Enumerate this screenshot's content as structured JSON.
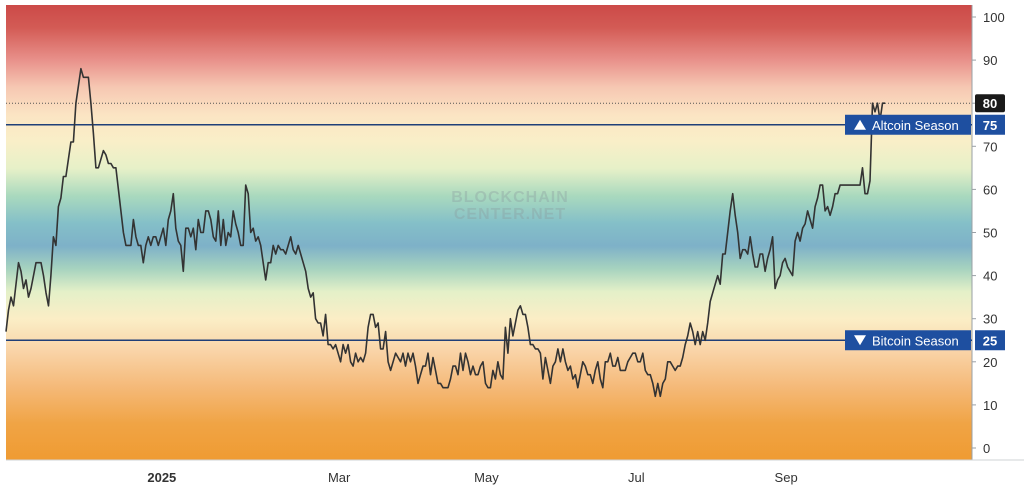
{
  "chart_data": {
    "type": "line",
    "title": "",
    "xlabel": "",
    "ylabel": "",
    "ylim": [
      -3,
      103
    ],
    "x_ticks": [
      "2025",
      "Mar",
      "May",
      "Jul",
      "Sep"
    ],
    "y_ticks": [
      "0",
      "10",
      "20",
      "30",
      "40",
      "50",
      "60",
      "70",
      "80",
      "90",
      "100"
    ],
    "watermark": [
      "BLOCKCHAIN",
      "CENTER.NET"
    ],
    "current_value": "80",
    "thresholds": [
      {
        "label": "Altcoin Season",
        "value": 75,
        "value_label": "75",
        "marker": "up-triangle"
      },
      {
        "label": "Bitcoin Season",
        "value": 25,
        "value_label": "25",
        "marker": "down-triangle"
      }
    ],
    "series": [
      {
        "color": "#333333",
        "values": [
          27,
          32,
          35,
          33,
          38,
          43,
          41,
          37,
          39,
          35,
          37,
          40,
          43,
          43,
          43,
          40,
          36,
          33,
          40,
          49,
          47,
          56,
          58,
          63,
          63,
          67,
          71,
          71,
          80,
          84,
          88,
          86,
          86,
          86,
          80,
          73,
          65,
          65,
          67,
          69,
          68,
          66,
          66,
          65,
          65,
          60,
          55,
          50,
          47,
          47,
          47,
          53,
          49,
          47,
          47,
          43,
          47,
          49,
          47,
          49,
          49,
          47,
          49,
          51,
          47,
          53,
          55,
          59,
          51,
          48,
          47,
          41,
          51,
          51,
          49,
          51,
          46,
          53,
          50,
          50,
          55,
          55,
          53,
          49,
          48,
          55,
          47,
          53,
          47,
          50,
          49,
          55,
          52,
          50,
          47,
          47,
          61,
          59,
          50,
          51,
          48,
          49,
          47,
          43,
          39,
          43,
          43,
          47,
          45,
          47,
          46,
          46,
          45,
          47,
          49,
          46,
          45,
          47,
          45,
          43,
          41,
          37,
          35,
          36,
          30,
          29,
          29,
          26,
          31,
          24,
          24,
          23,
          24,
          22,
          20,
          24,
          22,
          24,
          20,
          19,
          22,
          20,
          21,
          20,
          22,
          28,
          31,
          31,
          28,
          29,
          23,
          23,
          27,
          20,
          18,
          20,
          22,
          21,
          20,
          22,
          19,
          22,
          20,
          22,
          19,
          15,
          17,
          19,
          19,
          22,
          17,
          21,
          18,
          15,
          15,
          14,
          14,
          14,
          16,
          19,
          19,
          17,
          22,
          18,
          22,
          20,
          17,
          19,
          17,
          17,
          19,
          20,
          15,
          14,
          14,
          18,
          16,
          20,
          17,
          16,
          28,
          22,
          30,
          26,
          29,
          32,
          33,
          31,
          31,
          28,
          24,
          24,
          23,
          23,
          22,
          16,
          21,
          18,
          15,
          19,
          20,
          23,
          20,
          23,
          20,
          18,
          19,
          16,
          17,
          14,
          17,
          20,
          19,
          17,
          17,
          15,
          18,
          20,
          16,
          14,
          20,
          20,
          22,
          19,
          19,
          21,
          18,
          18,
          18,
          20,
          21,
          22,
          22,
          20,
          20,
          22,
          18,
          17,
          17,
          15,
          12,
          15,
          12,
          15,
          16,
          20,
          20,
          19,
          18,
          19,
          19,
          21,
          24,
          26,
          29,
          27,
          24,
          27,
          24,
          27,
          25,
          29,
          34,
          36,
          38,
          40,
          38,
          45,
          45,
          50,
          55,
          59,
          54,
          50,
          44,
          46,
          46,
          45,
          49,
          45,
          42,
          42,
          45,
          45,
          41,
          44,
          46,
          49,
          37,
          39,
          40,
          43,
          44,
          42,
          41,
          40,
          48,
          50,
          48,
          51,
          52,
          55,
          53,
          51,
          56,
          58,
          61,
          61,
          55,
          56,
          54,
          56,
          59,
          59,
          61,
          61,
          61,
          61,
          61,
          61,
          61,
          61,
          61,
          65,
          59,
          59,
          62,
          80,
          78,
          80,
          76,
          80,
          80
        ]
      }
    ]
  }
}
